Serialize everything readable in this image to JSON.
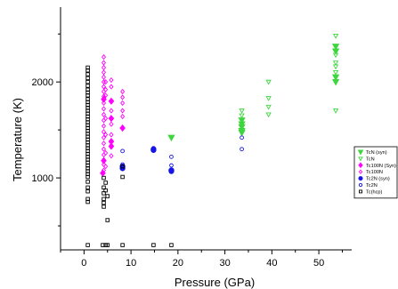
{
  "chart_data": {
    "type": "scatter",
    "title": "",
    "xlabel": "Pressure (GPa)",
    "ylabel": "Temperature (K)",
    "xlim": [
      -5,
      57
    ],
    "ylim": [
      250,
      2780
    ],
    "xticks": [
      0,
      10,
      20,
      30,
      40,
      50
    ],
    "yticks": [
      1000,
      2000
    ],
    "legend_position": "right",
    "series": [
      {
        "name": "TcN (syn)",
        "marker": "triangle-down",
        "filled": true,
        "color": "#3ed63e",
        "points": [
          [
            18.6,
            1420
          ],
          [
            33.6,
            1600
          ],
          [
            33.6,
            1560
          ],
          [
            33.6,
            1530
          ],
          [
            33.6,
            1490
          ],
          [
            33.6,
            1470
          ],
          [
            53.6,
            2370
          ],
          [
            53.6,
            2320
          ],
          [
            53.6,
            2050
          ],
          [
            53.6,
            2000
          ]
        ]
      },
      {
        "name": "TcN",
        "marker": "triangle-down",
        "filled": false,
        "color": "#3ed63e",
        "points": [
          [
            33.6,
            1700
          ],
          [
            33.6,
            1650
          ],
          [
            39.3,
            2000
          ],
          [
            39.3,
            1830
          ],
          [
            39.3,
            1740
          ],
          [
            39.3,
            1660
          ],
          [
            53.6,
            2480
          ],
          [
            53.6,
            2280
          ],
          [
            53.6,
            2200
          ],
          [
            53.6,
            2160
          ],
          [
            53.6,
            2100
          ],
          [
            53.6,
            1700
          ]
        ]
      },
      {
        "name": "Tc100N (Syn)",
        "marker": "diamond",
        "filled": true,
        "color": "#ff00ff",
        "points": [
          [
            4.2,
            1820
          ],
          [
            4.2,
            1180
          ],
          [
            5.8,
            1800
          ],
          [
            5.8,
            1620
          ],
          [
            5.8,
            1380
          ],
          [
            5.8,
            1330
          ],
          [
            8.2,
            1520
          ],
          [
            4.0,
            1050
          ]
        ]
      },
      {
        "name": "Tc100N",
        "marker": "diamond",
        "filled": false,
        "color": "#ff00ff",
        "points": [
          [
            4.2,
            2260
          ],
          [
            4.2,
            2200
          ],
          [
            4.2,
            2150
          ],
          [
            4.2,
            2100
          ],
          [
            4.2,
            2050
          ],
          [
            4.2,
            2000
          ],
          [
            4.2,
            1950
          ],
          [
            4.2,
            1900
          ],
          [
            4.2,
            1850
          ],
          [
            4.2,
            1780
          ],
          [
            4.2,
            1720
          ],
          [
            4.2,
            1660
          ],
          [
            4.2,
            1600
          ],
          [
            4.2,
            1540
          ],
          [
            4.2,
            1480
          ],
          [
            4.2,
            1420
          ],
          [
            4.2,
            1360
          ],
          [
            4.2,
            1300
          ],
          [
            4.2,
            1240
          ],
          [
            4.2,
            1140
          ],
          [
            4.2,
            1080
          ],
          [
            4.6,
            2000
          ],
          [
            4.6,
            1920
          ],
          [
            4.6,
            1860
          ],
          [
            4.6,
            1620
          ],
          [
            4.6,
            1450
          ],
          [
            4.6,
            1260
          ],
          [
            4.6,
            1120
          ],
          [
            5.8,
            2020
          ],
          [
            5.8,
            1950
          ],
          [
            5.8,
            1700
          ],
          [
            5.8,
            1560
          ],
          [
            5.8,
            1450
          ],
          [
            5.8,
            1230
          ],
          [
            8.2,
            1900
          ],
          [
            8.2,
            1840
          ],
          [
            8.2,
            1780
          ],
          [
            8.2,
            1700
          ],
          [
            8.2,
            1640
          ]
        ]
      },
      {
        "name": "Tc2N (syn)",
        "marker": "circle",
        "filled": true,
        "color": "#1515e8",
        "points": [
          [
            8.2,
            1120
          ],
          [
            8.2,
            1100
          ],
          [
            14.8,
            1300
          ],
          [
            14.8,
            1290
          ],
          [
            18.6,
            1080
          ],
          [
            18.6,
            1070
          ]
        ]
      },
      {
        "name": "Tc2N",
        "marker": "circle",
        "filled": false,
        "color": "#1515e8",
        "points": [
          [
            8.2,
            1280
          ],
          [
            8.2,
            1140
          ],
          [
            14.8,
            1310
          ],
          [
            18.6,
            1220
          ],
          [
            18.6,
            1130
          ],
          [
            33.6,
            1420
          ],
          [
            33.6,
            1300
          ]
        ]
      },
      {
        "name": "Tc(hcp)",
        "marker": "square",
        "filled": false,
        "color": "#000000",
        "points": [
          [
            0.8,
            2150
          ],
          [
            0.8,
            2120
          ],
          [
            0.8,
            2080
          ],
          [
            0.8,
            2040
          ],
          [
            0.8,
            2000
          ],
          [
            0.8,
            1960
          ],
          [
            0.8,
            1920
          ],
          [
            0.8,
            1890
          ],
          [
            0.8,
            1860
          ],
          [
            0.8,
            1820
          ],
          [
            0.8,
            1790
          ],
          [
            0.8,
            1760
          ],
          [
            0.8,
            1730
          ],
          [
            0.8,
            1700
          ],
          [
            0.8,
            1670
          ],
          [
            0.8,
            1640
          ],
          [
            0.8,
            1610
          ],
          [
            0.8,
            1580
          ],
          [
            0.8,
            1550
          ],
          [
            0.8,
            1520
          ],
          [
            0.8,
            1490
          ],
          [
            0.8,
            1460
          ],
          [
            0.8,
            1430
          ],
          [
            0.8,
            1400
          ],
          [
            0.8,
            1370
          ],
          [
            0.8,
            1340
          ],
          [
            0.8,
            1310
          ],
          [
            0.8,
            1280
          ],
          [
            0.8,
            1250
          ],
          [
            0.8,
            1220
          ],
          [
            0.8,
            1190
          ],
          [
            0.8,
            1160
          ],
          [
            0.8,
            1130
          ],
          [
            0.8,
            1100
          ],
          [
            0.8,
            1070
          ],
          [
            0.8,
            1040
          ],
          [
            0.8,
            1010
          ],
          [
            0.8,
            960
          ],
          [
            0.8,
            900
          ],
          [
            0.8,
            860
          ],
          [
            0.8,
            780
          ],
          [
            0.8,
            750
          ],
          [
            4.2,
            1000
          ],
          [
            4.2,
            900
          ],
          [
            4.2,
            840
          ],
          [
            4.2,
            780
          ],
          [
            4.2,
            740
          ],
          [
            4.2,
            700
          ],
          [
            4.6,
            950
          ],
          [
            4.6,
            870
          ],
          [
            5.0,
            810
          ],
          [
            5.0,
            560
          ],
          [
            8.2,
            1010
          ],
          [
            8.2,
            1120
          ],
          [
            0.8,
            300
          ],
          [
            4.0,
            300
          ],
          [
            4.6,
            300
          ],
          [
            5.0,
            300
          ],
          [
            8.2,
            300
          ],
          [
            14.8,
            300
          ],
          [
            18.6,
            300
          ]
        ]
      }
    ]
  }
}
